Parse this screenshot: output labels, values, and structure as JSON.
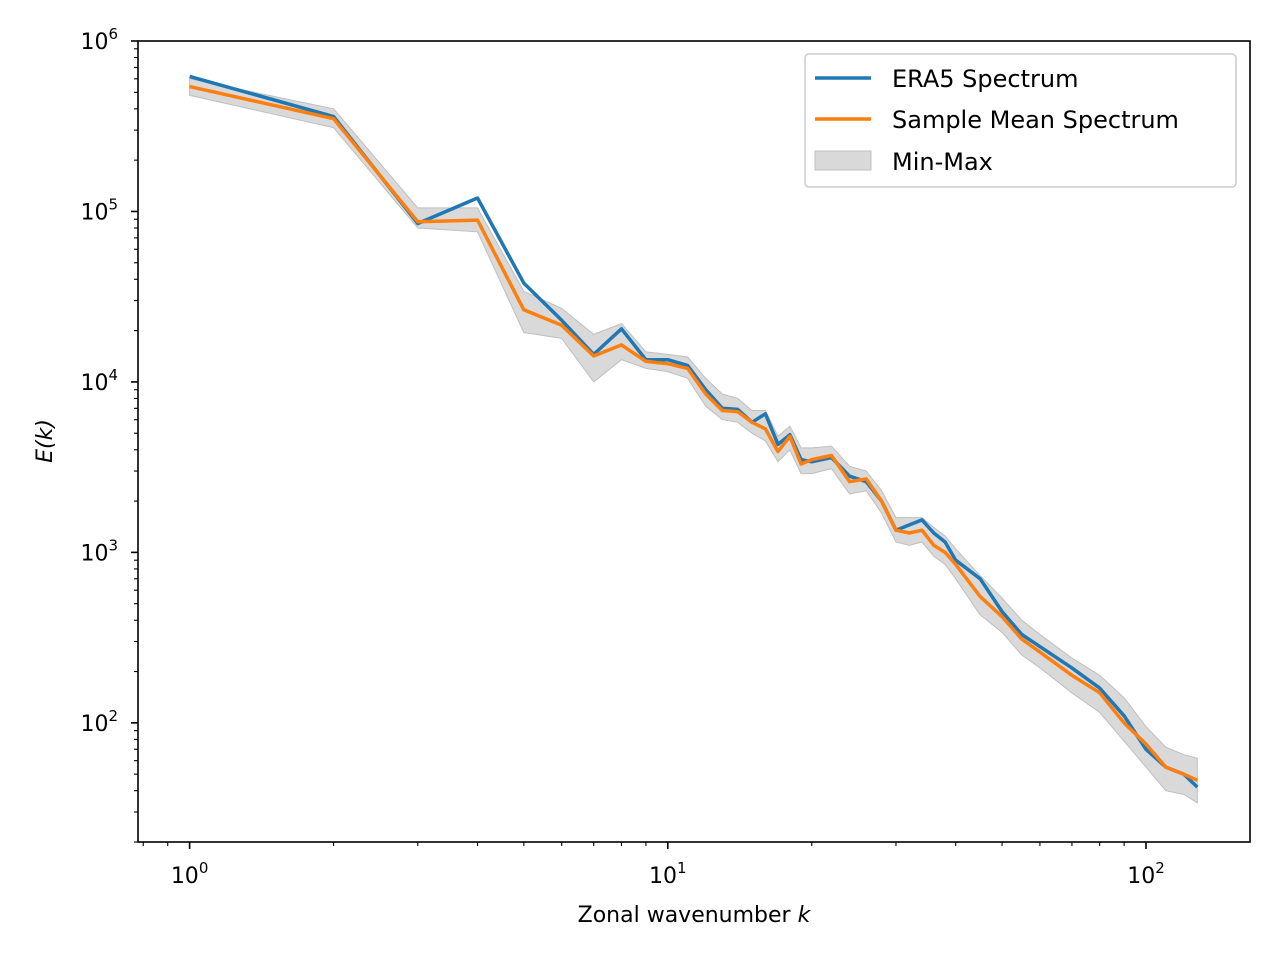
{
  "chart_data": {
    "type": "line",
    "title": "",
    "xlabel": "Zonal wavenumber",
    "xlabel_var": "k",
    "ylabel": "E(k)",
    "xscale": "log",
    "yscale": "log",
    "xlim": [
      0.78,
      165
    ],
    "ylim": [
      20,
      1000000
    ],
    "x_ticks": [
      {
        "base": "10",
        "exp": "0",
        "value": 1
      },
      {
        "base": "10",
        "exp": "1",
        "value": 10
      },
      {
        "base": "10",
        "exp": "2",
        "value": 100
      }
    ],
    "y_ticks": [
      {
        "base": "10",
        "exp": "2",
        "value": 100
      },
      {
        "base": "10",
        "exp": "3",
        "value": 1000
      },
      {
        "base": "10",
        "exp": "4",
        "value": 10000
      },
      {
        "base": "10",
        "exp": "5",
        "value": 100000
      },
      {
        "base": "10",
        "exp": "6",
        "value": 1000000
      }
    ],
    "legend": {
      "position": "top-right",
      "entries": [
        "ERA5 Spectrum",
        "Sample Mean Spectrum",
        "Min-Max"
      ]
    },
    "colors": {
      "era5": "#1f77b4",
      "sample_mean": "#ff7f0e",
      "band": "#bfbfbf"
    },
    "x": [
      1,
      2,
      3,
      4,
      5,
      6,
      7,
      8,
      9,
      10,
      11,
      12,
      13,
      14,
      15,
      16,
      17,
      18,
      19,
      20,
      22,
      24,
      26,
      28,
      30,
      32,
      34,
      36,
      38,
      40,
      45,
      50,
      55,
      60,
      70,
      80,
      90,
      100,
      110,
      120,
      128
    ],
    "series": [
      {
        "name": "ERA5 Spectrum",
        "values": [
          620000,
          360000,
          85000,
          120000,
          38000,
          23000,
          14500,
          20500,
          13500,
          13500,
          12500,
          9000,
          7000,
          6900,
          5800,
          6500,
          4300,
          4900,
          3500,
          3400,
          3600,
          2800,
          2600,
          2000,
          1350,
          1450,
          1550,
          1300,
          1150,
          900,
          700,
          450,
          330,
          280,
          210,
          160,
          110,
          70,
          55,
          50,
          42
        ]
      },
      {
        "name": "Sample Mean Spectrum",
        "values": [
          540000,
          350000,
          87000,
          89000,
          26500,
          21500,
          14200,
          16500,
          13200,
          12800,
          12000,
          8500,
          6800,
          6700,
          5800,
          5300,
          3900,
          4800,
          3300,
          3500,
          3700,
          2600,
          2700,
          2000,
          1350,
          1300,
          1350,
          1100,
          1000,
          850,
          550,
          420,
          310,
          260,
          190,
          150,
          100,
          75,
          55,
          50,
          46
        ]
      },
      {
        "name": "Min-Max",
        "min": [
          480000,
          310000,
          80000,
          76000,
          19500,
          18000,
          10000,
          13500,
          12000,
          11500,
          10500,
          7200,
          6000,
          5800,
          5000,
          4500,
          3400,
          4000,
          2900,
          2900,
          3100,
          2200,
          2300,
          1700,
          1150,
          1100,
          1150,
          950,
          850,
          700,
          430,
          340,
          250,
          210,
          150,
          115,
          78,
          55,
          40,
          38,
          34
        ],
        "max": [
          600000,
          400000,
          105000,
          105000,
          34000,
          27000,
          19000,
          22000,
          15000,
          14500,
          14000,
          10500,
          8500,
          8000,
          6800,
          6800,
          4800,
          5500,
          4100,
          4100,
          4200,
          3200,
          3000,
          2300,
          1600,
          1600,
          1600,
          1400,
          1250,
          1050,
          730,
          540,
          400,
          330,
          240,
          190,
          140,
          95,
          72,
          65,
          62
        ]
      }
    ]
  }
}
